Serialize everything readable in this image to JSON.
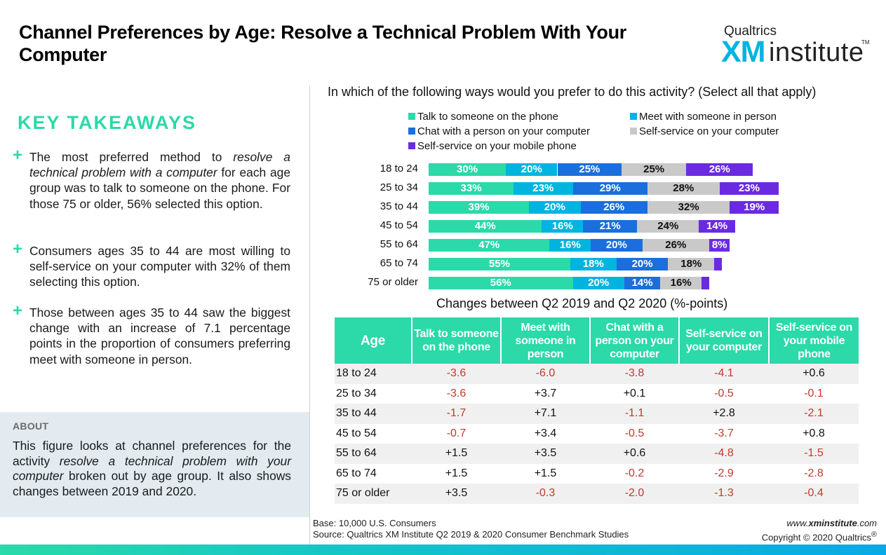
{
  "title": "Channel Preferences by Age: Resolve a Technical Problem With Your Computer",
  "logo": {
    "top": "Qualtrics",
    "xm": "XM",
    "institute": "institute",
    "tm": "TM"
  },
  "key_takeaways": {
    "heading": "KEY TAKEAWAYS",
    "plus": "+",
    "items": [
      {
        "pre": "The most preferred method to ",
        "em": "resolve a technical problem with a computer",
        "post": " for each age group was to talk to someone on the phone. For those 75 or older, 56% selected this option."
      },
      {
        "text": "Consumers ages 35 to 44 are most willing to self-service on your computer with 32% of them selecting this option."
      },
      {
        "text": "Those between ages 35 to 44 saw the biggest change with an increase of 7.1 percentage points in the proportion of consumers preferring meet with someone in person."
      }
    ]
  },
  "about": {
    "heading": "ABOUT",
    "pre": "This figure looks at channel preferences for the activity ",
    "em": "resolve a technical problem with your computer",
    "post": " broken out by age group. It also shows changes between 2019 and 2020."
  },
  "colors": {
    "accent": "#2bd9a9",
    "series": [
      "#2bd9a9",
      "#00b4e0",
      "#1a6fdc",
      "#c9c9c9",
      "#6a2be0"
    ],
    "negative": "#c0392b"
  },
  "chart_data": [
    {
      "type": "bar",
      "orientation": "horizontal",
      "stacked": true,
      "title": "In which of the following ways would you prefer to do this activity? (Select all that apply)",
      "legend_placement": "top",
      "categories": [
        "18 to 24",
        "25 to 34",
        "35 to 44",
        "45 to 54",
        "55 to 64",
        "65 to 74",
        "75 or older"
      ],
      "series": [
        {
          "name": "Talk to someone on the phone",
          "values": [
            30,
            33,
            39,
            44,
            47,
            55,
            56
          ],
          "labels": [
            "30%",
            "33%",
            "39%",
            "44%",
            "47%",
            "55%",
            "56%"
          ]
        },
        {
          "name": "Meet with someone in person",
          "values": [
            20,
            23,
            20,
            16,
            16,
            18,
            20
          ],
          "labels": [
            "20%",
            "23%",
            "20%",
            "16%",
            "16%",
            "18%",
            "20%"
          ]
        },
        {
          "name": "Chat with a person on your computer",
          "values": [
            25,
            29,
            26,
            21,
            20,
            20,
            14
          ],
          "labels": [
            "25%",
            "29%",
            "26%",
            "21%",
            "20%",
            "20%",
            "14%"
          ]
        },
        {
          "name": "Self-service on your computer",
          "values": [
            25,
            28,
            32,
            24,
            26,
            18,
            16
          ],
          "labels": [
            "25%",
            "28%",
            "32%",
            "24%",
            "26%",
            "18%",
            "16%"
          ]
        },
        {
          "name": "Self-service on your mobile phone",
          "values": [
            26,
            23,
            19,
            14,
            8,
            3,
            3
          ],
          "labels": [
            "26%",
            "23%",
            "19%",
            "14%",
            "8%",
            "",
            ""
          ]
        }
      ],
      "grid": false
    },
    {
      "type": "table",
      "title": "Changes between Q2 2019 and Q2 2020 (%-points)",
      "columns": [
        "Age",
        "Talk to someone on the phone",
        "Meet with someone in person",
        "Chat with a person on your computer",
        "Self-service on your computer",
        "Self-service on your mobile phone"
      ],
      "rows": [
        [
          "18 to 24",
          "-3.6",
          "-6.0",
          "-3.8",
          "-4.1",
          "+0.6"
        ],
        [
          "25 to 34",
          "-3.6",
          "+3.7",
          "+0.1",
          "-0.5",
          "-0.1"
        ],
        [
          "35 to 44",
          "-1.7",
          "+7.1",
          "-1.1",
          "+2.8",
          "-2.1"
        ],
        [
          "45 to 54",
          "-0.7",
          "+3.4",
          "-0.5",
          "-3.7",
          "+0.8"
        ],
        [
          "55 to 64",
          "+1.5",
          "+3.5",
          "+0.6",
          "-4.8",
          "-1.5"
        ],
        [
          "65 to 74",
          "+1.5",
          "+1.5",
          "-0.2",
          "-2.9",
          "-2.8"
        ],
        [
          "75 or older",
          "+3.5",
          "-0.3",
          "-2.0",
          "-1.3",
          "-0.4"
        ]
      ]
    }
  ],
  "footer": {
    "base": "Base: 10,000 U.S. Consumers",
    "source": "Source: Qualtrics XM Institute Q2 2019 & 2020 Consumer Benchmark Studies",
    "site_pre": "www.",
    "site_bold": "xminstitute",
    "site_post": ".com",
    "copyright": "Copyright © 2020 Qualtrics",
    "reg": "®"
  }
}
